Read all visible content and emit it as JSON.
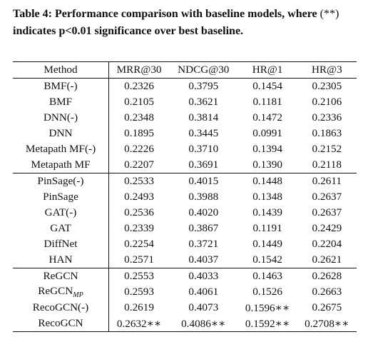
{
  "caption": {
    "lead": "Table 4: Performance comparison with baseline models, where ",
    "sig_mark": "(**)",
    "tail": " indicates p<0.01 significance over best baseline."
  },
  "table": {
    "headers": [
      "Method",
      "MRR@30",
      "NDCG@30",
      "HR@1",
      "HR@3"
    ],
    "groups": [
      [
        {
          "method": "BMF(-)",
          "values": [
            "0.2326",
            "0.3795",
            "0.1454",
            "0.2305"
          ]
        },
        {
          "method": "BMF",
          "values": [
            "0.2105",
            "0.3621",
            "0.1181",
            "0.2106"
          ]
        },
        {
          "method": "DNN(-)",
          "values": [
            "0.2348",
            "0.3814",
            "0.1472",
            "0.2336"
          ]
        },
        {
          "method": "DNN",
          "values": [
            "0.1895",
            "0.3445",
            "0.0991",
            "0.1863"
          ]
        },
        {
          "method": "Metapath MF(-)",
          "values": [
            "0.2226",
            "0.3710",
            "0.1394",
            "0.2152"
          ]
        },
        {
          "method": "Metapath MF",
          "values": [
            "0.2207",
            "0.3691",
            "0.1390",
            "0.2118"
          ]
        }
      ],
      [
        {
          "method": "PinSage(-)",
          "values": [
            "0.2533",
            "0.4015",
            "0.1448",
            "0.2611"
          ]
        },
        {
          "method": "PinSage",
          "values": [
            "0.2493",
            "0.3988",
            "0.1348",
            "0.2637"
          ]
        },
        {
          "method": "GAT(-)",
          "values": [
            "0.2536",
            "0.4020",
            "0.1439",
            "0.2637"
          ]
        },
        {
          "method": "GAT",
          "values": [
            "0.2339",
            "0.3867",
            "0.1191",
            "0.2429"
          ]
        },
        {
          "method": "DiffNet",
          "values": [
            "0.2254",
            "0.3721",
            "0.1449",
            "0.2204"
          ]
        },
        {
          "method": "HAN",
          "values": [
            "0.2571",
            "0.4037",
            "0.1542",
            "0.2621"
          ]
        }
      ],
      [
        {
          "method": "ReGCN",
          "values": [
            "0.2553",
            "0.4033",
            "0.1463",
            "0.2628"
          ]
        },
        {
          "method": "ReGCN",
          "sub": "MP",
          "values": [
            "0.2593",
            "0.4061",
            "0.1526",
            "0.2663"
          ]
        },
        {
          "method": "RecoGCN(-)",
          "values": [
            "0.2619",
            "0.4073",
            "0.1596",
            "0.2675"
          ],
          "bold": [
            2
          ]
        },
        {
          "method": "RecoGCN",
          "values": [
            "0.2632",
            "0.4086",
            "0.1592",
            "0.2708"
          ],
          "bold": [
            0,
            1,
            2,
            3
          ]
        }
      ]
    ],
    "significance_mark": "∗∗"
  }
}
